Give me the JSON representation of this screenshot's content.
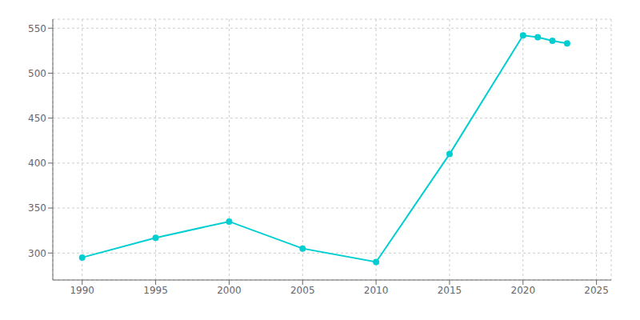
{
  "chart_data": {
    "type": "line",
    "x": [
      1990,
      1995,
      2000,
      2005,
      2010,
      2015,
      2020,
      2021,
      2022,
      2023
    ],
    "values": [
      295,
      317,
      335,
      305,
      290,
      410,
      542,
      540,
      536,
      533
    ],
    "color": "#00CED1",
    "marker": "circle",
    "xlim": [
      1988,
      2026
    ],
    "ylim": [
      270,
      560
    ],
    "xticks": [
      1990,
      1995,
      2000,
      2005,
      2010,
      2015,
      2020,
      2025
    ],
    "yticks": [
      300,
      350,
      400,
      450,
      500,
      550
    ],
    "grid": true
  }
}
